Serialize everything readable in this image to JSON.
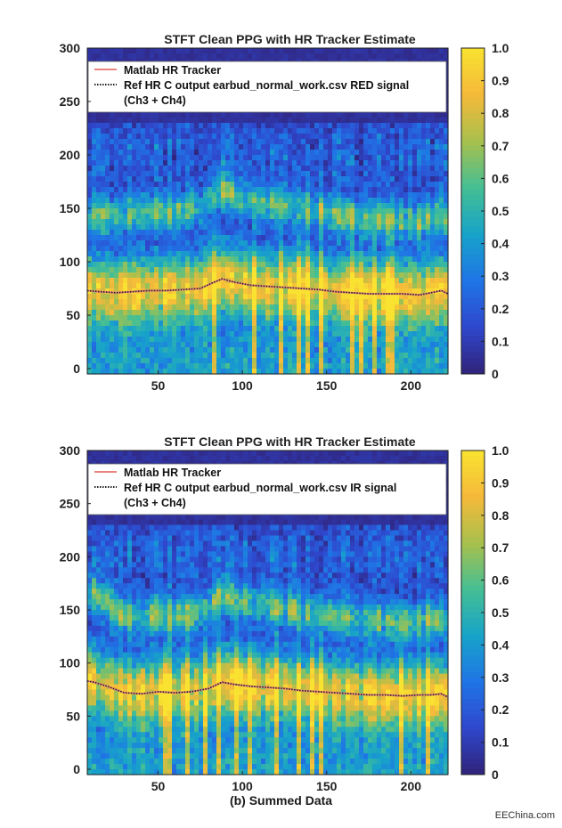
{
  "chart_data": [
    {
      "type": "heatmap",
      "title": "STFT Clean PPG with HR Tracker Estimate",
      "xlabel": "",
      "ylabel": "",
      "xlim": [
        8,
        222
      ],
      "ylim": [
        -5,
        300
      ],
      "x_ticks": [
        50,
        100,
        150,
        200
      ],
      "y_ticks": [
        0,
        50,
        100,
        150,
        200,
        250,
        300
      ],
      "colorbar": {
        "range": [
          0,
          1
        ],
        "ticks": [
          "0",
          "0.1",
          "0.2",
          "0.3",
          "0.4",
          "0.5",
          "0.6",
          "0.7",
          "0.8",
          "0.9",
          "1.0"
        ]
      },
      "colormap": [
        "#30237a",
        "#2f47cc",
        "#1f75e6",
        "#17a3c9",
        "#45bf94",
        "#a8c04c",
        "#f5b93a",
        "#f9e330"
      ],
      "legend": {
        "placement": "top",
        "entries": [
          {
            "label": "Matlab HR Tracker",
            "color": "#e8857f",
            "style": "solid"
          },
          {
            "label": "Ref HR C output earbud_normal_work.csv RED signal",
            "color": "#222222",
            "style": "dotted"
          },
          {
            "label": "(Ch3 + Ch4)"
          }
        ]
      },
      "series": [
        {
          "x": [
            8,
            15,
            25,
            35,
            45,
            55,
            65,
            75,
            82,
            88,
            95,
            105,
            115,
            125,
            135,
            145,
            155,
            165,
            175,
            185,
            195,
            205,
            212,
            218,
            222
          ],
          "y": [
            73,
            72,
            71,
            72,
            73,
            73,
            74,
            75,
            80,
            84,
            81,
            78,
            77,
            76,
            75,
            74,
            72,
            71,
            70,
            70,
            70,
            69,
            71,
            73,
            70
          ]
        }
      ]
    },
    {
      "type": "heatmap",
      "title": "STFT Clean PPG with HR Tracker Estimate",
      "xlabel": "(b) Summed Data",
      "ylabel": "",
      "xlim": [
        8,
        222
      ],
      "ylim": [
        -5,
        300
      ],
      "x_ticks": [
        50,
        100,
        150,
        200
      ],
      "y_ticks": [
        0,
        50,
        100,
        150,
        200,
        250,
        300
      ],
      "colorbar": {
        "range": [
          0,
          1
        ],
        "ticks": [
          "0",
          "0.1",
          "0.2",
          "0.3",
          "0.4",
          "0.5",
          "0.6",
          "0.7",
          "0.8",
          "0.9",
          "1.0"
        ]
      },
      "colormap": [
        "#30237a",
        "#2f47cc",
        "#1f75e6",
        "#17a3c9",
        "#45bf94",
        "#a8c04c",
        "#f5b93a",
        "#f9e330"
      ],
      "legend": {
        "placement": "top",
        "entries": [
          {
            "label": "Matlab HR Tracker",
            "color": "#e8857f",
            "style": "solid"
          },
          {
            "label": "Ref HR C output earbud_normal_work.csv IR signal",
            "color": "#222222",
            "style": "dotted"
          },
          {
            "label": "(Ch3 + Ch4)"
          }
        ]
      },
      "series": [
        {
          "x": [
            8,
            12,
            20,
            30,
            40,
            50,
            60,
            70,
            80,
            88,
            95,
            105,
            115,
            125,
            135,
            145,
            155,
            165,
            175,
            185,
            195,
            205,
            212,
            218,
            222
          ],
          "y": [
            83,
            82,
            78,
            72,
            71,
            73,
            72,
            73,
            76,
            82,
            80,
            78,
            77,
            76,
            74,
            73,
            72,
            71,
            70,
            70,
            69,
            70,
            70,
            71,
            68
          ]
        }
      ]
    }
  ],
  "footer": {
    "watermark": "EEChina.com"
  }
}
